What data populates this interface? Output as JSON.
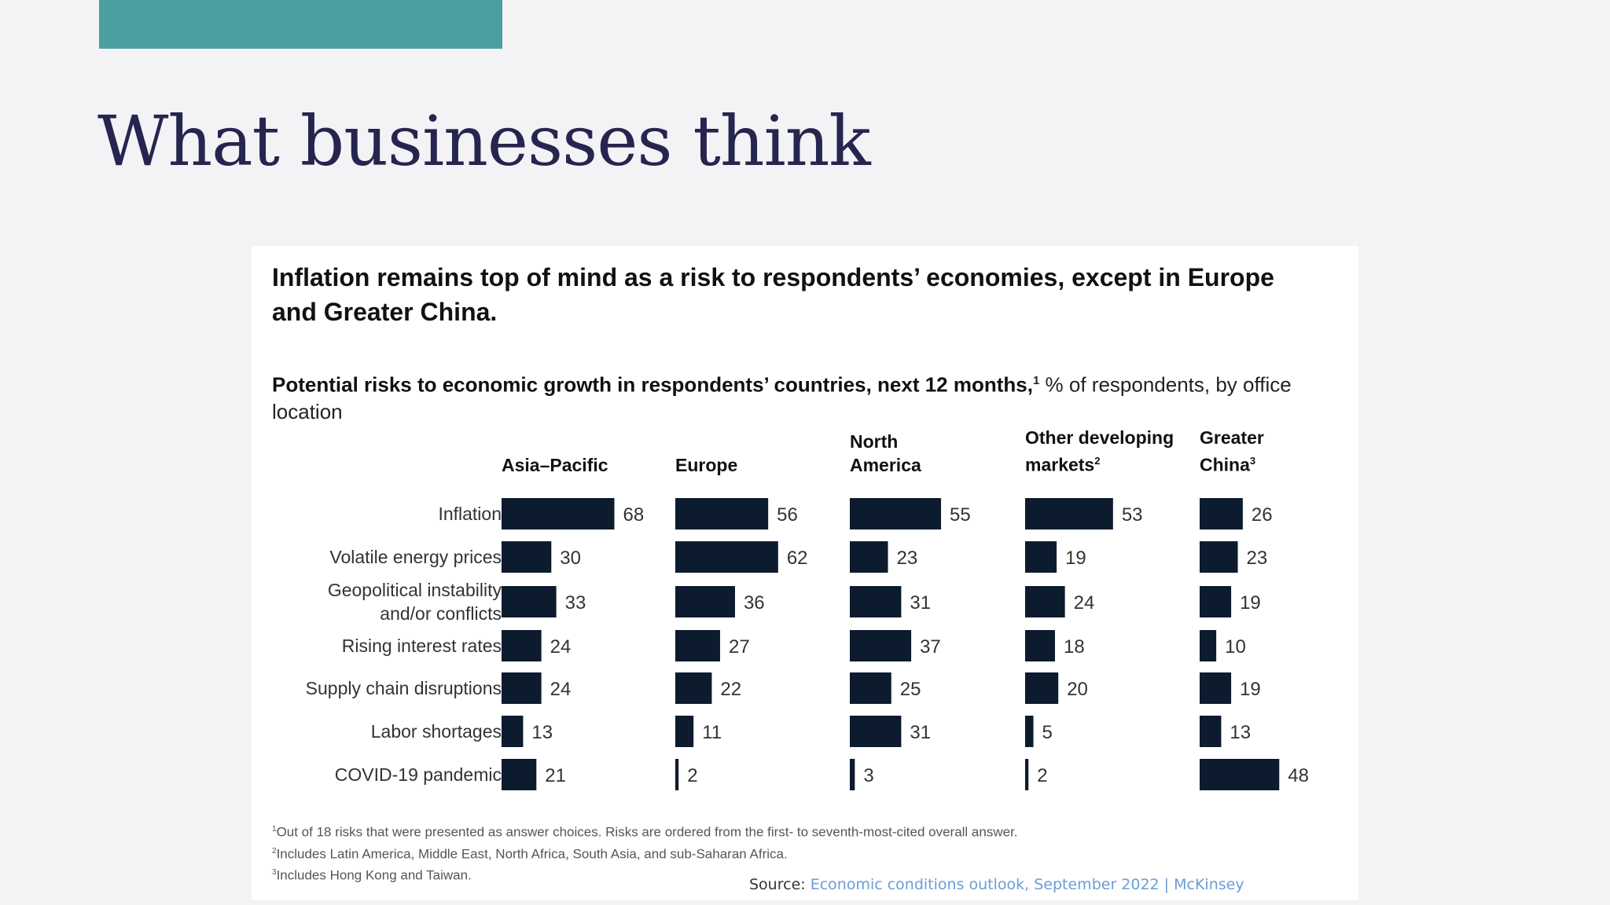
{
  "slide": {
    "title": "What businesses think",
    "accent_color": "#4a9fa0"
  },
  "chart_data": {
    "type": "bar",
    "orientation": "horizontal",
    "layout": "small-multiples",
    "headline": "Inflation remains top of mind as a risk to respondents’ economies, except in Europe and Greater China.",
    "subtitle_bold": "Potential risks to economic growth in respondents’ countries, next 12 months,",
    "subtitle_bold_sup": "1",
    "subtitle_rest": " % of respondents, by office location",
    "unit": "% of respondents",
    "bar_color": "#0d1b2e",
    "categories": [
      [
        "Inflation"
      ],
      [
        "Volatile energy prices"
      ],
      [
        "Geopolitical instability",
        "and/or conflicts"
      ],
      [
        "Rising interest rates"
      ],
      [
        "Supply chain disruptions"
      ],
      [
        "Labor shortages"
      ],
      [
        "COVID-19 pandemic"
      ]
    ],
    "series": [
      {
        "name_lines": [
          "Asia–Pacific"
        ],
        "sup": "",
        "values": [
          68,
          30,
          33,
          24,
          24,
          13,
          21
        ]
      },
      {
        "name_lines": [
          "Europe"
        ],
        "sup": "",
        "values": [
          56,
          62,
          36,
          27,
          22,
          11,
          2
        ]
      },
      {
        "name_lines": [
          "North",
          "America"
        ],
        "sup": "",
        "values": [
          55,
          23,
          31,
          37,
          25,
          31,
          3
        ]
      },
      {
        "name_lines": [
          "Other developing",
          "markets"
        ],
        "sup": "2",
        "values": [
          53,
          19,
          24,
          18,
          20,
          5,
          2
        ]
      },
      {
        "name_lines": [
          "Greater",
          "China"
        ],
        "sup": "3",
        "values": [
          26,
          23,
          19,
          10,
          19,
          13,
          48
        ]
      }
    ],
    "footnotes": [
      {
        "num": "1",
        "text": "Out of 18 risks that were presented as answer choices. Risks are ordered from the first- to seventh-most-cited overall answer."
      },
      {
        "num": "2",
        "text": "Includes Latin America, Middle East, North Africa, South Asia, and sub-Saharan Africa."
      },
      {
        "num": "3",
        "text": "Includes Hong Kong and Taiwan."
      }
    ]
  },
  "source": {
    "label": "Source: ",
    "link_text": "Economic conditions outlook, September 2022 | McKinsey"
  }
}
